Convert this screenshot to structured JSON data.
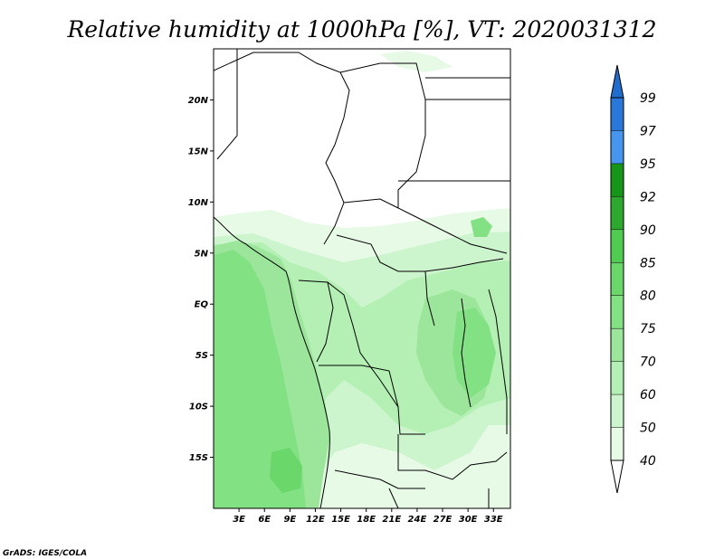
{
  "title": "Relative humidity at 1000hPa [%], VT: 2020031312",
  "credit": "GrADS: IGES/COLA",
  "map": {
    "lon_range": [
      0,
      35
    ],
    "lat_range": [
      -20,
      25
    ],
    "lat_ticks": [
      {
        "value": 20,
        "label": "20N"
      },
      {
        "value": 15,
        "label": "15N"
      },
      {
        "value": 10,
        "label": "10N"
      },
      {
        "value": 5,
        "label": "5N"
      },
      {
        "value": 0,
        "label": "EQ"
      },
      {
        "value": -5,
        "label": "5S"
      },
      {
        "value": -10,
        "label": "10S"
      },
      {
        "value": -15,
        "label": "15S"
      }
    ],
    "lon_ticks": [
      {
        "value": 3,
        "label": "3E"
      },
      {
        "value": 6,
        "label": "6E"
      },
      {
        "value": 9,
        "label": "9E"
      },
      {
        "value": 12,
        "label": "12E"
      },
      {
        "value": 15,
        "label": "15E"
      },
      {
        "value": 18,
        "label": "18E"
      },
      {
        "value": 21,
        "label": "21E"
      },
      {
        "value": 24,
        "label": "24E"
      },
      {
        "value": 27,
        "label": "27E"
      },
      {
        "value": 30,
        "label": "30E"
      },
      {
        "value": 33,
        "label": "33E"
      }
    ]
  },
  "colorbar": {
    "levels": [
      "40",
      "50",
      "60",
      "70",
      "75",
      "80",
      "85",
      "90",
      "92",
      "95",
      "97",
      "99"
    ],
    "colors": [
      "#ffffff",
      "#e6fae6",
      "#cdf5cd",
      "#b4f0b4",
      "#9be69b",
      "#82e182",
      "#69d769",
      "#50cd50",
      "#2daa2d",
      "#169616",
      "#4696f0",
      "#2878dc",
      "#1e6ed2"
    ]
  }
}
